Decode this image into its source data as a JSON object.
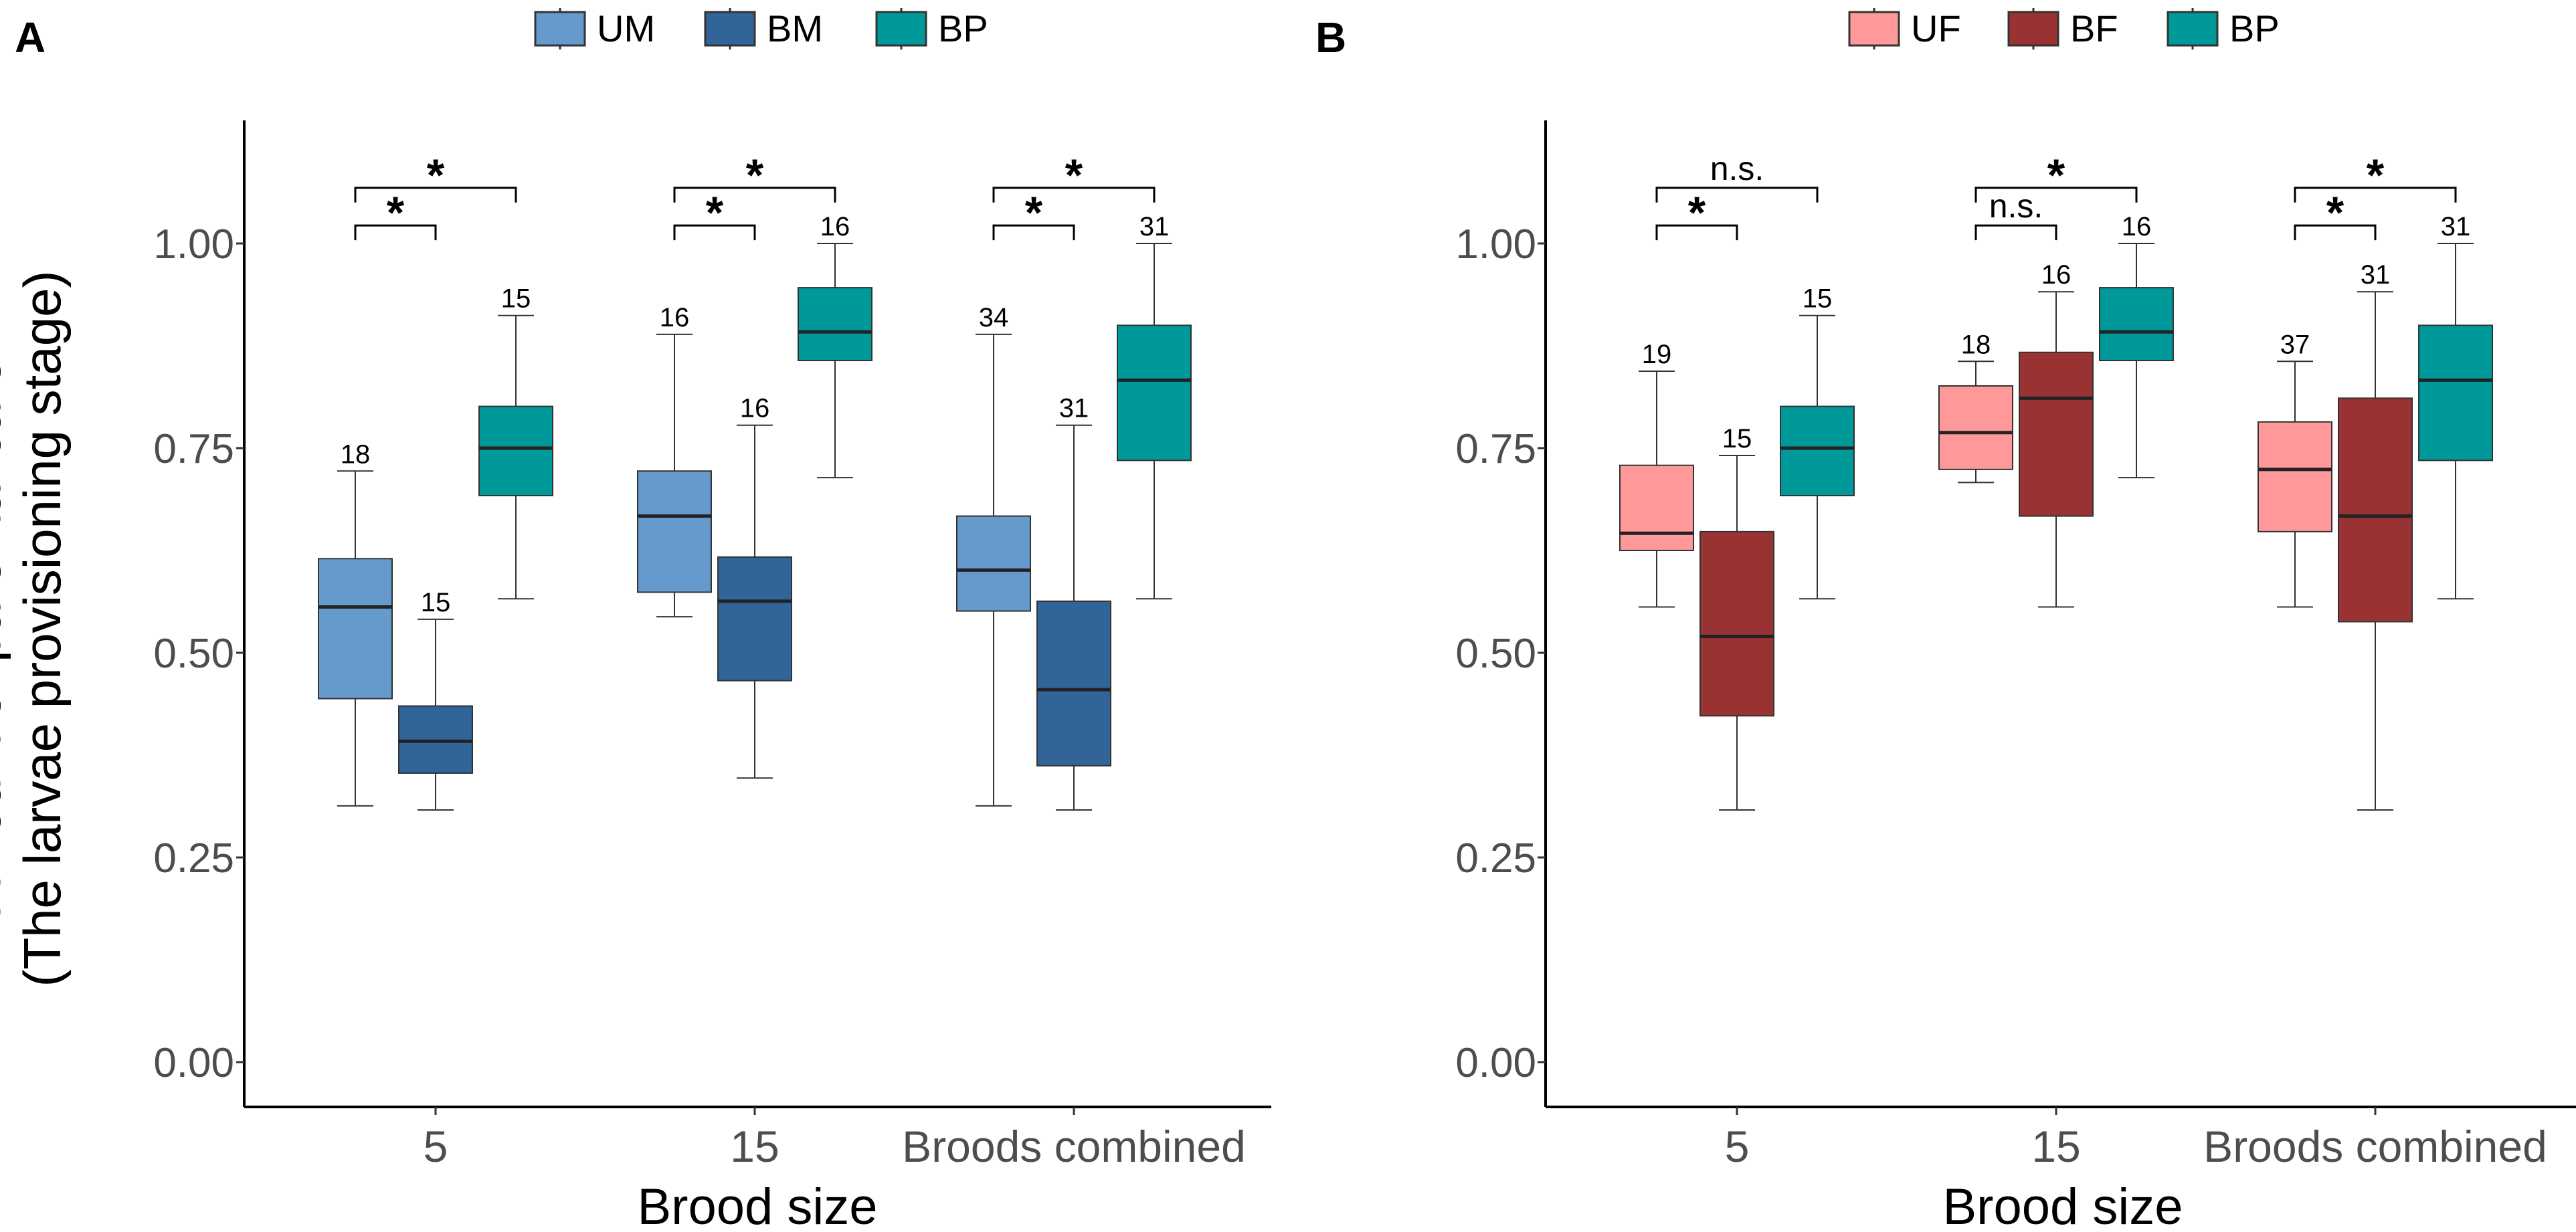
{
  "chart_data": [
    {
      "panel_label": "A",
      "type": "boxplot",
      "xlabel": "Brood size",
      "ylabel_line1": "Amount of parental care",
      "ylabel_line2": "(The larvae provisioning stage)",
      "categories": [
        "5",
        "15",
        "Broods combined"
      ],
      "ylim": [
        0,
        1.15
      ],
      "yticks": [
        "0.00",
        "0.25",
        "0.50",
        "0.75",
        "1.00"
      ],
      "ytick_values": [
        0,
        0.25,
        0.5,
        0.75,
        1.0
      ],
      "legend": [
        {
          "name": "UM",
          "color": "#6699cc"
        },
        {
          "name": "BM",
          "color": "#31659a"
        },
        {
          "name": "BP",
          "color": "#009999"
        }
      ],
      "boxes": [
        {
          "category": "5",
          "series": "UM",
          "min": 0.313,
          "q1": 0.444,
          "median": 0.556,
          "q3": 0.615,
          "max": 0.722,
          "n": "18"
        },
        {
          "category": "5",
          "series": "BM",
          "min": 0.308,
          "q1": 0.353,
          "median": 0.392,
          "q3": 0.435,
          "max": 0.541,
          "n": "15"
        },
        {
          "category": "5",
          "series": "BP",
          "min": 0.566,
          "q1": 0.692,
          "median": 0.75,
          "q3": 0.801,
          "max": 0.912,
          "n": "15"
        },
        {
          "category": "15",
          "series": "UM",
          "min": 0.544,
          "q1": 0.574,
          "median": 0.667,
          "q3": 0.722,
          "max": 0.889,
          "n": "16"
        },
        {
          "category": "15",
          "series": "BM",
          "min": 0.347,
          "q1": 0.466,
          "median": 0.563,
          "q3": 0.617,
          "max": 0.778,
          "n": "16"
        },
        {
          "category": "15",
          "series": "BP",
          "min": 0.714,
          "q1": 0.857,
          "median": 0.892,
          "q3": 0.946,
          "max": 1.0,
          "n": "16"
        },
        {
          "category": "Broods combined",
          "series": "UM",
          "min": 0.313,
          "q1": 0.551,
          "median": 0.601,
          "q3": 0.667,
          "max": 0.889,
          "n": "34"
        },
        {
          "category": "Broods combined",
          "series": "BM",
          "min": 0.308,
          "q1": 0.362,
          "median": 0.455,
          "q3": 0.563,
          "max": 0.778,
          "n": "31"
        },
        {
          "category": "Broods combined",
          "series": "BP",
          "min": 0.566,
          "q1": 0.735,
          "median": 0.833,
          "q3": 0.9,
          "max": 1.0,
          "n": "31"
        }
      ],
      "comparisons": [
        {
          "category": "5",
          "from": "UM",
          "to": "BM",
          "label": "*",
          "y": 1.022
        },
        {
          "category": "5",
          "from": "UM",
          "to": "BP",
          "label": "*",
          "y": 1.068
        },
        {
          "category": "15",
          "from": "UM",
          "to": "BM",
          "label": "*",
          "y": 1.022
        },
        {
          "category": "15",
          "from": "UM",
          "to": "BP",
          "label": "*",
          "y": 1.068
        },
        {
          "category": "Broods combined",
          "from": "UM",
          "to": "BM",
          "label": "*",
          "y": 1.022
        },
        {
          "category": "Broods combined",
          "from": "UM",
          "to": "BP",
          "label": "*",
          "y": 1.068
        }
      ]
    },
    {
      "panel_label": "B",
      "type": "boxplot",
      "xlabel": "Brood size",
      "ylabel_line1": "Amount of parental care",
      "ylabel_line2": "(The larvae provisioning stage)",
      "categories": [
        "5",
        "15",
        "Broods combined"
      ],
      "ylim": [
        0,
        1.15
      ],
      "yticks": [
        "0.00",
        "0.25",
        "0.50",
        "0.75",
        "1.00"
      ],
      "ytick_values": [
        0,
        0.25,
        0.5,
        0.75,
        1.0
      ],
      "legend": [
        {
          "name": "UF",
          "color": "#ff9999"
        },
        {
          "name": "BF",
          "color": "#993333"
        },
        {
          "name": "BP",
          "color": "#009999"
        }
      ],
      "boxes": [
        {
          "category": "5",
          "series": "UF",
          "min": 0.556,
          "q1": 0.625,
          "median": 0.646,
          "q3": 0.729,
          "max": 0.844,
          "n": "19"
        },
        {
          "category": "5",
          "series": "BF",
          "min": 0.308,
          "q1": 0.423,
          "median": 0.52,
          "q3": 0.648,
          "max": 0.741,
          "n": "15"
        },
        {
          "category": "5",
          "series": "BP",
          "min": 0.566,
          "q1": 0.692,
          "median": 0.75,
          "q3": 0.801,
          "max": 0.912,
          "n": "15"
        },
        {
          "category": "15",
          "series": "UF",
          "min": 0.708,
          "q1": 0.724,
          "median": 0.769,
          "q3": 0.826,
          "max": 0.856,
          "n": "18"
        },
        {
          "category": "15",
          "series": "BF",
          "min": 0.556,
          "q1": 0.667,
          "median": 0.811,
          "q3": 0.867,
          "max": 0.941,
          "n": "16"
        },
        {
          "category": "15",
          "series": "BP",
          "min": 0.714,
          "q1": 0.857,
          "median": 0.892,
          "q3": 0.946,
          "max": 1.0,
          "n": "16"
        },
        {
          "category": "Broods combined",
          "series": "UF",
          "min": 0.556,
          "q1": 0.648,
          "median": 0.724,
          "q3": 0.782,
          "max": 0.856,
          "n": "37"
        },
        {
          "category": "Broods combined",
          "series": "BF",
          "min": 0.308,
          "q1": 0.538,
          "median": 0.667,
          "q3": 0.811,
          "max": 0.941,
          "n": "31"
        },
        {
          "category": "Broods combined",
          "series": "BP",
          "min": 0.566,
          "q1": 0.735,
          "median": 0.833,
          "q3": 0.9,
          "max": 1.0,
          "n": "31"
        }
      ],
      "comparisons": [
        {
          "category": "5",
          "from": "UF",
          "to": "BF",
          "label": "*",
          "y": 1.022
        },
        {
          "category": "5",
          "from": "UF",
          "to": "BP",
          "label": "n.s.",
          "y": 1.068
        },
        {
          "category": "15",
          "from": "UF",
          "to": "BF",
          "label": "n.s.",
          "y": 1.022
        },
        {
          "category": "15",
          "from": "UF",
          "to": "BP",
          "label": "*",
          "y": 1.068
        },
        {
          "category": "Broods combined",
          "from": "UF",
          "to": "BF",
          "label": "*",
          "y": 1.022
        },
        {
          "category": "Broods combined",
          "from": "UF",
          "to": "BP",
          "label": "*",
          "y": 1.068
        }
      ]
    }
  ]
}
